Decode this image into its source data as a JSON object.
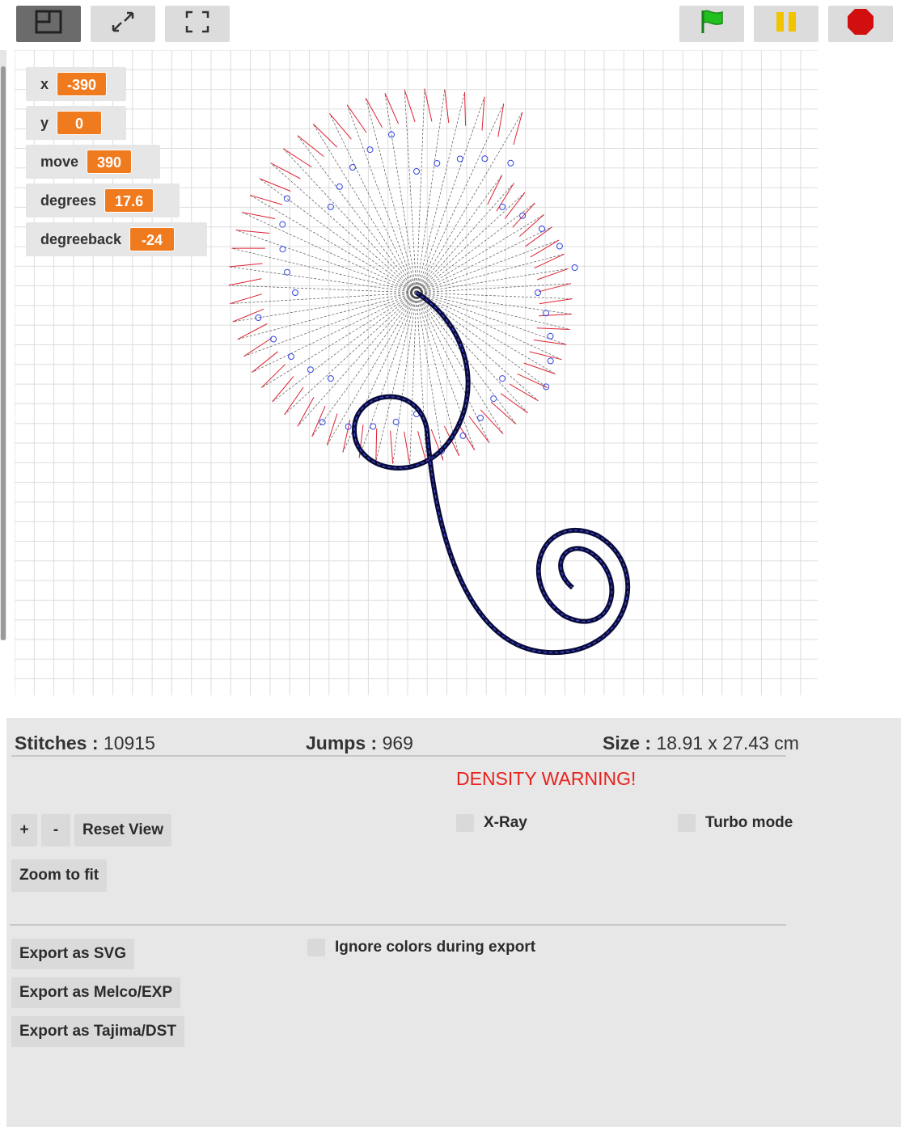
{
  "toolbar": {
    "normal_stage_icon": "normal-stage-icon",
    "stage_size_icon": "stage-size-icon",
    "fullscreen_icon": "fullscreen-icon",
    "green_flag_icon": "green-flag-icon",
    "pause_icon": "pause-icon",
    "stop_icon": "stop-icon",
    "flag_color": "#22c01e",
    "pause_color": "#f2c400",
    "stop_color": "#d10f0f"
  },
  "watchers": [
    {
      "label": "x",
      "value": "-390"
    },
    {
      "label": "y",
      "value": "0"
    },
    {
      "label": "move",
      "value": "390"
    },
    {
      "label": "degrees",
      "value": "17.6"
    },
    {
      "label": "degreeback",
      "value": "-24"
    }
  ],
  "stats": {
    "stitches_label": "Stitches :",
    "stitches_value": "10915",
    "jumps_label": "Jumps :",
    "jumps_value": "969",
    "size_label": "Size :",
    "size_value": "18.91 x 27.43 cm"
  },
  "warning": "DENSITY WARNING!",
  "warning_color": "#e8211d",
  "controls": {
    "zoom_in": "+",
    "zoom_out": "-",
    "reset_view": "Reset View",
    "zoom_to_fit": "Zoom to fit",
    "xray": "X-Ray",
    "turbo": "Turbo mode"
  },
  "export": {
    "svg": "Export as SVG",
    "melco": "Export as Melco/EXP",
    "tajima": "Export as Tajima/DST",
    "ignore_colors": "Ignore colors during export"
  },
  "accent_color": "#f07a1e"
}
